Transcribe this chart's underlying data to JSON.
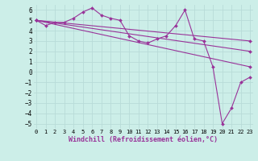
{
  "background_color": "#cceee8",
  "grid_color": "#aadddd",
  "line_color": "#993399",
  "line_width": 0.8,
  "marker_size": 2.0,
  "xlabel": "Windchill (Refroidissement éolien,°C)",
  "xlabel_fontsize": 6.0,
  "ylim": [
    -5.5,
    6.5
  ],
  "xlim": [
    -0.3,
    23.3
  ],
  "yticks": [
    -5,
    -4,
    -3,
    -2,
    -1,
    0,
    1,
    2,
    3,
    4,
    5,
    6
  ],
  "xticks": [
    0,
    1,
    2,
    3,
    4,
    5,
    6,
    7,
    8,
    9,
    10,
    11,
    12,
    13,
    14,
    15,
    16,
    17,
    18,
    19,
    20,
    21,
    22,
    23
  ],
  "lines": [
    {
      "x": [
        0,
        1,
        2,
        3,
        4,
        5,
        6,
        7,
        8,
        9,
        10,
        11,
        12,
        13,
        14,
        15,
        16,
        17,
        18,
        19,
        20,
        21,
        22,
        23
      ],
      "y": [
        5.0,
        4.5,
        4.8,
        4.8,
        5.2,
        5.8,
        6.2,
        5.5,
        5.2,
        5.0,
        3.5,
        3.0,
        2.8,
        3.2,
        3.5,
        4.5,
        6.0,
        3.2,
        3.0,
        0.5,
        -5.0,
        -3.5,
        -1.0,
        -0.5
      ]
    },
    {
      "x": [
        0,
        23
      ],
      "y": [
        5.0,
        3.0
      ]
    },
    {
      "x": [
        0,
        23
      ],
      "y": [
        5.0,
        2.0
      ]
    },
    {
      "x": [
        0,
        23
      ],
      "y": [
        5.0,
        0.5
      ]
    }
  ]
}
